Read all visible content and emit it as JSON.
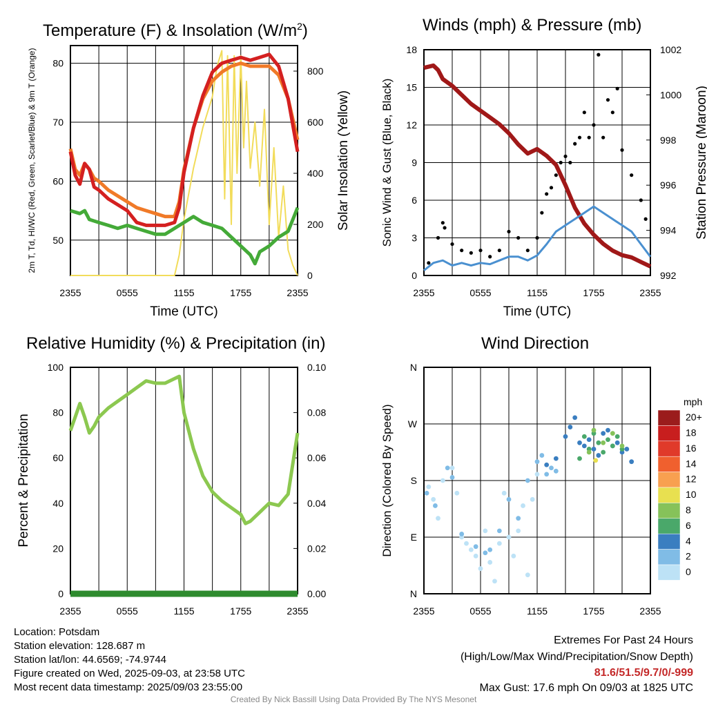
{
  "panels": {
    "temperature": {
      "title_main": "Temperature (F) & Insolation (W/m",
      "title_sup": "2",
      "title_end": ")",
      "ylabel_left": "2m T, Td, HI/WC (Red, Green, Scarlet/Blue) & 9m T (Orange)",
      "ylabel_right": "Solar Insolation (Yellow)",
      "xlabel": "Time (UTC)"
    },
    "winds": {
      "title": "Winds (mph) & Pressure (mb)",
      "ylabel_left": "Sonic Wind & Gust (Blue, Black)",
      "ylabel_right": "Station Pressure (Maroon)",
      "xlabel": "Time (UTC)"
    },
    "humidity": {
      "title": "Relative Humidity (%) & Precipitation (in)",
      "ylabel_left": "Percent & Precipitation"
    },
    "direction": {
      "title": "Wind Direction",
      "ylabel_left": "Direction (Colored By Speed)",
      "legend_title": "mph",
      "legend_labels": [
        "20+",
        "18",
        "16",
        "14",
        "12",
        "10",
        "8",
        "6",
        "4",
        "2",
        "0"
      ],
      "legend_colors": [
        "#9b1c1c",
        "#c81e1e",
        "#e03a2a",
        "#f0602e",
        "#f8a050",
        "#e8e050",
        "#86c25a",
        "#4aa86a",
        "#3a7ec0",
        "#80bce6",
        "#bde2f6"
      ]
    }
  },
  "colors": {
    "air_temp": "#d42020",
    "temp_9m": "#f07a28",
    "dewpoint": "#44aa38",
    "insolation": "#f2dc5a",
    "wind": "#4a90d0",
    "gust": "#000000",
    "pressure": "#a01818",
    "rh": "#8cc850",
    "precip": "#2e8b2e"
  },
  "station_info": {
    "location": "Location: Potsdam",
    "elevation": "Station elevation: 128.687 m",
    "latlon": "Station lat/lon: 44.6569; -74.9744",
    "created": "Figure created on Wed, 2025-09-03, at 23:58 UTC",
    "recent": "Most recent data timestamp: 2025/09/03 23:55:00"
  },
  "extremes": {
    "title": "Extremes For Past 24 Hours",
    "subtitle": "(High/Low/Max Wind/Precipitation/Snow Depth)",
    "values": "81.6/51.5/9.7/0/-999",
    "gust": "Max Gust: 17.6 mph On 09/03 at 1825 UTC"
  },
  "credit": "Created By Nick Bassill Using Data Provided By The NYS Mesonet",
  "chart_data": [
    {
      "type": "line",
      "id": "temperature",
      "x_ticks": [
        "2355",
        "0555",
        "1155",
        "1755",
        "2355"
      ],
      "x_range_hours": [
        0,
        24
      ],
      "y_ticks_left": [
        "50",
        "60",
        "70",
        "80"
      ],
      "y_ticks_right": [
        "0",
        "200",
        "400",
        "600",
        "800"
      ],
      "ylim_left": [
        44,
        83
      ],
      "ylim_right": [
        0,
        900
      ],
      "grid": true,
      "series": [
        {
          "key": "temp_9m",
          "color_key": "temp_9m",
          "axis": "left",
          "x": [
            0,
            0.5,
            1,
            1.5,
            2,
            2.5,
            3,
            4,
            5,
            6,
            7,
            8,
            9,
            10,
            11,
            11.5,
            12,
            13,
            14,
            15,
            16,
            17,
            18,
            19,
            20,
            21,
            22,
            23,
            24
          ],
          "y": [
            65.5,
            62,
            61,
            63,
            62,
            60.5,
            60,
            58.5,
            57.5,
            56.5,
            55.5,
            55,
            54.5,
            54,
            54,
            56.5,
            62,
            69,
            74,
            77,
            78.5,
            79.5,
            80,
            79.5,
            79.5,
            79.5,
            78,
            74,
            67
          ]
        },
        {
          "key": "air_temp",
          "color_key": "air_temp",
          "axis": "left",
          "x": [
            0,
            0.5,
            1,
            1.5,
            2,
            2.5,
            3,
            4,
            5,
            6,
            7,
            8,
            9,
            10,
            11,
            11.5,
            12,
            13,
            14,
            15,
            16,
            17,
            18,
            19,
            20,
            21,
            22,
            23,
            24
          ],
          "y": [
            65,
            61,
            59.5,
            63,
            62,
            59,
            58.5,
            57,
            56,
            55,
            53,
            52.5,
            52.5,
            52.5,
            53,
            55.5,
            61.5,
            69,
            74.5,
            78.5,
            80,
            80.5,
            81,
            80.5,
            81,
            81.5,
            79.5,
            74,
            65
          ]
        },
        {
          "key": "dewpoint",
          "color_key": "dewpoint",
          "axis": "left",
          "x": [
            0,
            1,
            1.5,
            2,
            3,
            4,
            5,
            6,
            7,
            8,
            9,
            10,
            11,
            12,
            13,
            14,
            15,
            16,
            17,
            18,
            19,
            19.5,
            20,
            21,
            22,
            23,
            24
          ],
          "y": [
            55,
            54.5,
            55,
            53.5,
            53,
            52.5,
            52,
            52.5,
            52,
            51.5,
            51,
            51,
            52,
            53,
            54,
            53,
            52.5,
            52,
            50.5,
            49,
            47.5,
            46,
            48,
            49,
            50.5,
            51.5,
            55.5
          ]
        },
        {
          "key": "insolation",
          "color_key": "insolation",
          "axis": "right",
          "x": [
            0,
            9,
            11,
            11.5,
            12,
            13,
            14,
            15,
            15.5,
            16,
            16.3,
            16.6,
            17,
            17.3,
            17.6,
            18,
            18.3,
            18.6,
            19,
            19.5,
            20,
            20.5,
            21,
            21.5,
            22,
            22.5,
            23,
            23.5,
            24
          ],
          "y": [
            0,
            0,
            0,
            80,
            220,
            420,
            580,
            700,
            820,
            880,
            300,
            860,
            200,
            860,
            400,
            860,
            500,
            760,
            420,
            600,
            350,
            650,
            200,
            500,
            150,
            350,
            100,
            40,
            0
          ]
        }
      ]
    },
    {
      "type": "line",
      "id": "winds",
      "x_ticks": [
        "2355",
        "0555",
        "1155",
        "1755",
        "2355"
      ],
      "y_ticks_left": [
        "0",
        "3",
        "6",
        "9",
        "12",
        "15",
        "18"
      ],
      "y_ticks_right": [
        "992",
        "994",
        "996",
        "998",
        "1000",
        "1002"
      ],
      "ylim_left": [
        0,
        18
      ],
      "ylim_right": [
        992,
        1002
      ],
      "grid": true,
      "series": [
        {
          "key": "pressure",
          "color_key": "pressure",
          "axis": "right",
          "x": [
            0,
            1,
            1.5,
            2,
            3,
            4,
            5,
            6,
            7,
            8,
            9,
            10,
            11,
            11.5,
            12,
            13,
            14,
            15,
            16,
            17,
            18,
            19,
            20,
            21,
            22,
            23,
            24
          ],
          "y": [
            1001.2,
            1001.3,
            1001.1,
            1000.7,
            1000.4,
            1000.0,
            999.6,
            999.3,
            999.0,
            998.7,
            998.3,
            997.8,
            997.4,
            997.5,
            997.6,
            997.3,
            996.9,
            996.0,
            995.0,
            994.3,
            993.8,
            993.4,
            993.1,
            992.9,
            992.8,
            992.6,
            992.4
          ]
        },
        {
          "key": "wind",
          "color_key": "wind",
          "axis": "left",
          "x": [
            0,
            1,
            2,
            3,
            4,
            5,
            6,
            7,
            8,
            9,
            10,
            11,
            12,
            13,
            14,
            15,
            16,
            17,
            18,
            19,
            20,
            21,
            22,
            23,
            24
          ],
          "y": [
            0.4,
            1.0,
            1.2,
            0.8,
            1.0,
            0.8,
            1.0,
            0.9,
            1.2,
            1.5,
            1.5,
            1.2,
            1.6,
            2.5,
            3.5,
            4.0,
            4.5,
            5.0,
            5.5,
            5.0,
            4.5,
            4.0,
            3.5,
            2.5,
            1.5
          ]
        },
        {
          "key": "gust",
          "color_key": "gust",
          "axis": "left",
          "points": true,
          "x": [
            0.5,
            1.5,
            2.0,
            2.2,
            3.0,
            4.0,
            5.0,
            6.0,
            7.0,
            8.0,
            9.0,
            10.0,
            11.0,
            12.0,
            12.5,
            13.0,
            13.5,
            14.0,
            14.5,
            15.0,
            15.5,
            16.0,
            16.5,
            17.0,
            17.5,
            18.0,
            18.5,
            19.0,
            19.5,
            20.0,
            20.5,
            21.0,
            22.0,
            23.0,
            23.5
          ],
          "y": [
            1.0,
            3.0,
            4.2,
            3.8,
            2.5,
            2.0,
            1.8,
            2.0,
            1.5,
            2.0,
            3.5,
            3.0,
            2.0,
            3.0,
            5.0,
            6.5,
            7.0,
            8.0,
            9.0,
            9.5,
            9.0,
            10.5,
            11.0,
            13.0,
            11.0,
            12.0,
            17.6,
            11.0,
            14.0,
            13.0,
            14.9,
            10.0,
            8.0,
            6.0,
            4.5
          ]
        }
      ]
    },
    {
      "type": "line",
      "id": "humidity",
      "x_ticks": [
        "2355",
        "0555",
        "1155",
        "1755",
        "2355"
      ],
      "y_ticks_left": [
        "0",
        "20",
        "40",
        "60",
        "80",
        "100"
      ],
      "y_ticks_right": [
        "0.00",
        "0.02",
        "0.04",
        "0.06",
        "0.08",
        "0.10"
      ],
      "ylim_left": [
        0,
        100
      ],
      "ylim_right": [
        0,
        0.1
      ],
      "grid": true,
      "series": [
        {
          "key": "rh",
          "color_key": "rh",
          "axis": "left",
          "x": [
            0,
            0.5,
            1,
            1.5,
            2,
            2.5,
            3,
            4,
            5,
            6,
            7,
            8,
            9,
            10,
            11,
            11.5,
            12,
            13,
            14,
            15,
            16,
            17,
            18,
            18.5,
            19,
            20,
            21,
            22,
            23,
            24
          ],
          "y": [
            72,
            78,
            84,
            78,
            71,
            74,
            78,
            82,
            85,
            88,
            91,
            94,
            93,
            93,
            95,
            96,
            80,
            64,
            52,
            45,
            41,
            38,
            35,
            31,
            32,
            36,
            40,
            39,
            44,
            71
          ]
        },
        {
          "key": "precip",
          "color_key": "precip",
          "axis": "right",
          "x": [
            0,
            24
          ],
          "y": [
            0,
            0
          ]
        }
      ]
    },
    {
      "type": "scatter",
      "id": "wind_direction",
      "x_ticks": [
        "2355",
        "0555",
        "1155",
        "1755",
        "2355"
      ],
      "y_ticks": [
        "N",
        "E",
        "S",
        "W",
        "N"
      ],
      "ylim": [
        0,
        360
      ],
      "grid": true,
      "series": [
        {
          "name": "0",
          "color_index": 10,
          "x": [
            0.5,
            1.0,
            1.5,
            2.0,
            3.0,
            3.5,
            4.0,
            4.5,
            5.0,
            5.5,
            6.0,
            6.5,
            7.0,
            7.5,
            8.0,
            8.5,
            9.0,
            9.5,
            10.0,
            10.5,
            11.0,
            11.5,
            12.0
          ],
          "y": [
            170,
            150,
            120,
            180,
            200,
            160,
            90,
            80,
            70,
            60,
            40,
            100,
            50,
            20,
            80,
            160,
            90,
            60,
            100,
            140,
            30,
            150,
            190
          ]
        },
        {
          "name": "2",
          "color_index": 9,
          "x": [
            0.3,
            1.2,
            2.5,
            3.0,
            4.0,
            5.5,
            6.5,
            7.0,
            8.0,
            9.0,
            10.0,
            11.0,
            12.0,
            12.5,
            13.0,
            13.5,
            14.0
          ],
          "y": [
            160,
            140,
            200,
            185,
            95,
            75,
            65,
            70,
            100,
            150,
            120,
            180,
            210,
            220,
            190,
            200,
            195
          ]
        },
        {
          "name": "4",
          "color_index": 8,
          "x": [
            13.0,
            14.0,
            15.0,
            15.5,
            16.0,
            16.5,
            17.0,
            17.5,
            18.0,
            18.5,
            19.0,
            19.5,
            20.0,
            20.5,
            21.0,
            21.5,
            22.0
          ],
          "y": [
            205,
            215,
            250,
            265,
            280,
            240,
            235,
            245,
            230,
            220,
            255,
            260,
            235,
            240,
            225,
            230,
            210
          ]
        },
        {
          "name": "6",
          "color_index": 7,
          "x": [
            16.5,
            17.0,
            17.5,
            18.0,
            18.5,
            19.0,
            19.5,
            20.0,
            20.5,
            21.0
          ],
          "y": [
            215,
            250,
            230,
            255,
            240,
            225,
            245,
            235,
            250,
            230
          ]
        },
        {
          "name": "8",
          "color_index": 6,
          "x": [
            17.5,
            18.0,
            19.0,
            20.0,
            21.0
          ],
          "y": [
            225,
            260,
            240,
            255,
            235
          ]
        },
        {
          "name": "10",
          "color_index": 5,
          "x": [
            18.2
          ],
          "y": [
            212
          ]
        }
      ]
    }
  ]
}
